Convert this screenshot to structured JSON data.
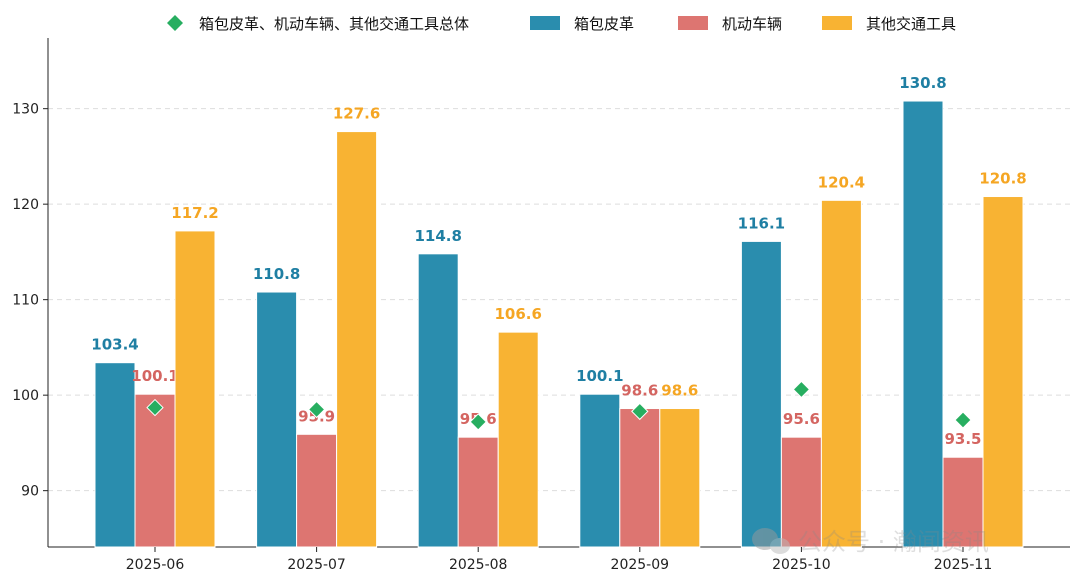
{
  "chart_data": {
    "type": "bar",
    "title": "",
    "xlabel": "",
    "ylabel": "",
    "categories": [
      "2025-06",
      "2025-07",
      "2025-08",
      "2025-09",
      "2025-10",
      "2025-11"
    ],
    "ylim": [
      84.1,
      137.4
    ],
    "yticks": [
      90,
      100,
      110,
      120,
      130
    ],
    "grid": true,
    "legend_placement": "top",
    "series": [
      {
        "name": "箱包皮革",
        "kind": "bar",
        "color": "#2A8DAE",
        "values": [
          103.4,
          110.8,
          114.8,
          100.1,
          116.1,
          130.8
        ]
      },
      {
        "name": "机动车辆",
        "kind": "bar",
        "color": "#DD7571",
        "values": [
          100.1,
          95.9,
          95.6,
          98.6,
          95.6,
          93.5
        ]
      },
      {
        "name": "其他交通工具",
        "kind": "bar",
        "color": "#F8B333",
        "values": [
          117.2,
          127.6,
          106.6,
          98.6,
          120.4,
          120.8
        ]
      },
      {
        "name": "箱包皮革、机动车辆、其他交通工具总体",
        "kind": "marker",
        "marker": "diamond",
        "color": "#27AE60",
        "values": [
          98.7,
          98.5,
          97.2,
          98.3,
          100.6,
          97.4
        ]
      }
    ],
    "label_colors": [
      "#1F7FA3",
      "#D46561",
      "#F5A623"
    ]
  },
  "watermark": {
    "text": "公众号 · 瀚闻资讯",
    "icon": "wechat-icon"
  }
}
